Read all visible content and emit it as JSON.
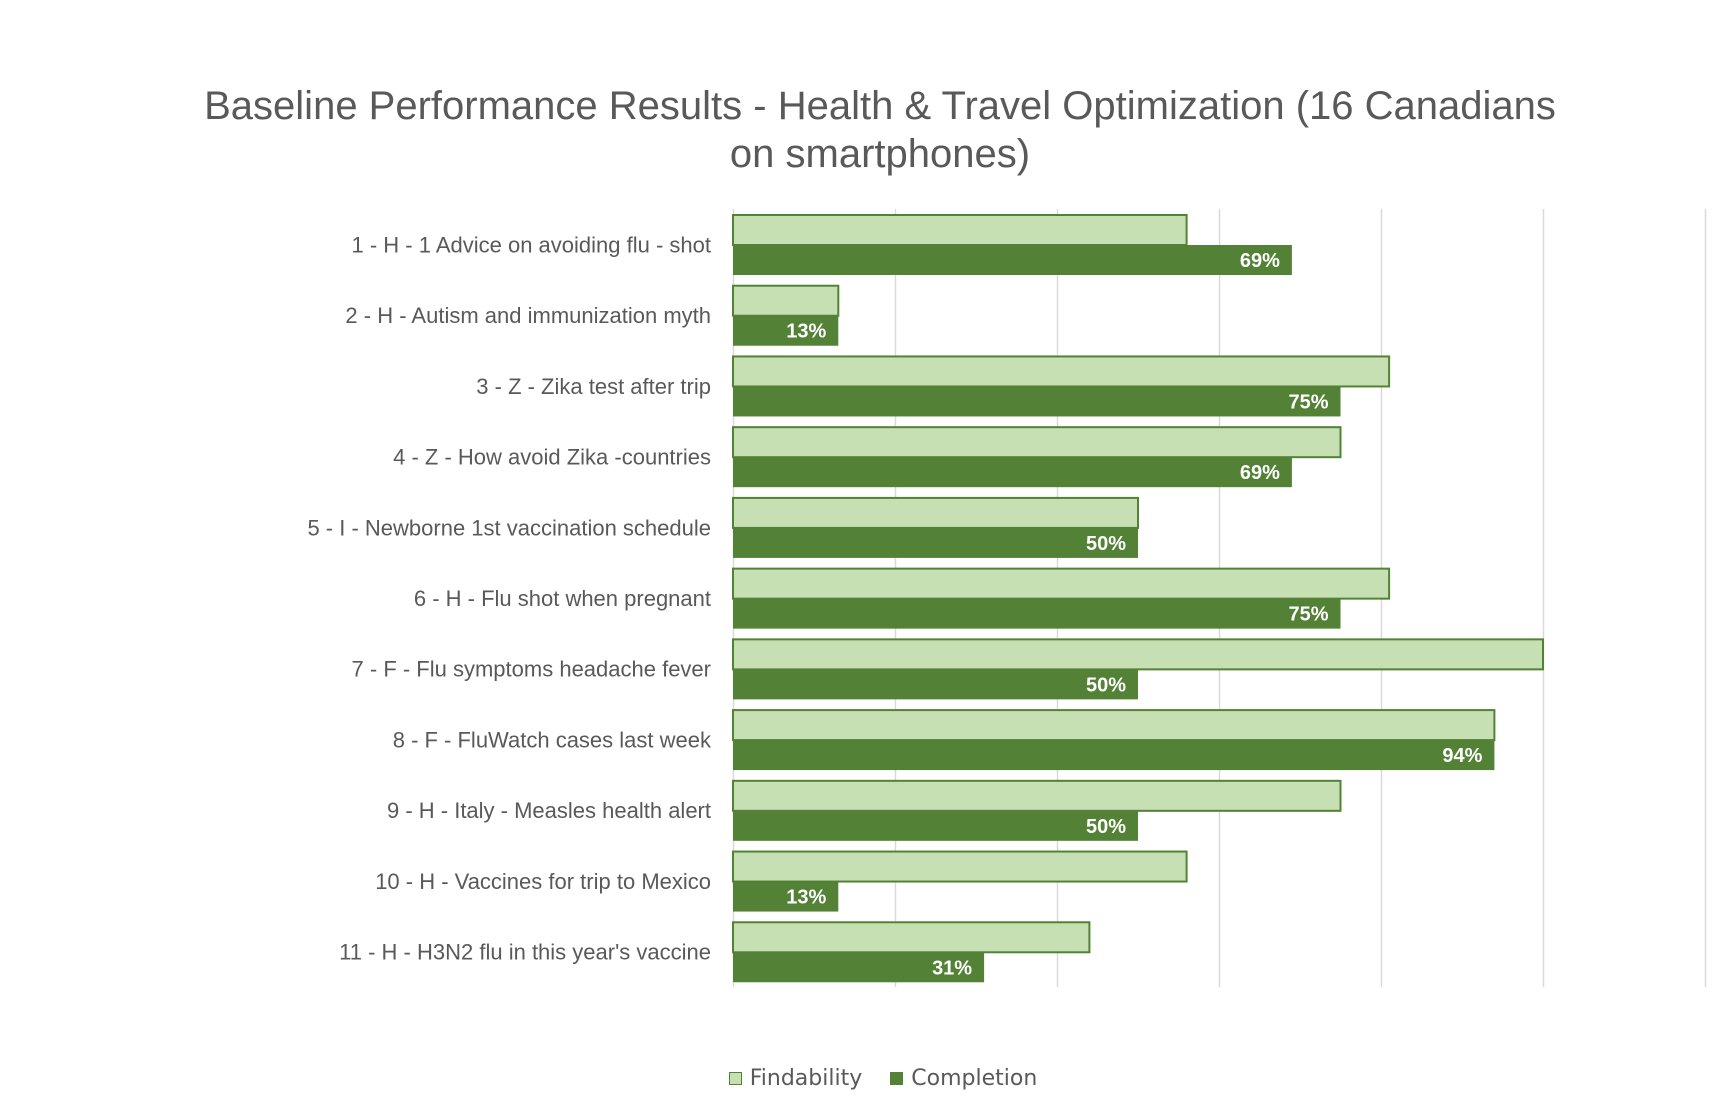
{
  "chart_data": {
    "type": "bar",
    "orientation": "horizontal",
    "title": "Baseline Performance Results - Health & Travel Optimization (16 Canadians on smartphones)",
    "xlabel": "",
    "ylabel": "",
    "xlim": [
      0,
      1.2
    ],
    "grid": true,
    "legend_position": "bottom",
    "categories": [
      "1 - H - 1 Advice on avoiding flu - shot",
      "2 - H - Autism and immunization myth",
      "3 - Z - Zika test after trip",
      "4 - Z - How avoid Zika -countries",
      "5 - I - Newborne 1st vaccination schedule",
      "6 - H - Flu shot when pregnant",
      "7 - F - Flu symptoms headache fever",
      "8 - F - FluWatch cases last week",
      "9 - H - Italy - Measles health alert",
      "10 - H - Vaccines for trip to Mexico",
      "11 - H - H3N2 flu in this year's vaccine"
    ],
    "series": [
      {
        "name": "Findability",
        "color": "#c6e0b4",
        "border_color": "#548235",
        "values": [
          0.56,
          0.13,
          0.81,
          0.75,
          0.5,
          0.81,
          1.0,
          0.94,
          0.75,
          0.56,
          0.44
        ],
        "data_labels": null
      },
      {
        "name": "Completion",
        "color": "#538135",
        "values": [
          0.69,
          0.13,
          0.75,
          0.69,
          0.5,
          0.75,
          0.5,
          0.94,
          0.5,
          0.13,
          0.31
        ],
        "data_labels": [
          "69%",
          "13%",
          "75%",
          "69%",
          "50%",
          "75%",
          "50%",
          "94%",
          "50%",
          "13%",
          "31%"
        ]
      }
    ]
  },
  "colors": {
    "gridline": "#d9d9d9",
    "axis_text": "#595959",
    "title_text": "#595959",
    "data_label_text": "#ffffff"
  }
}
